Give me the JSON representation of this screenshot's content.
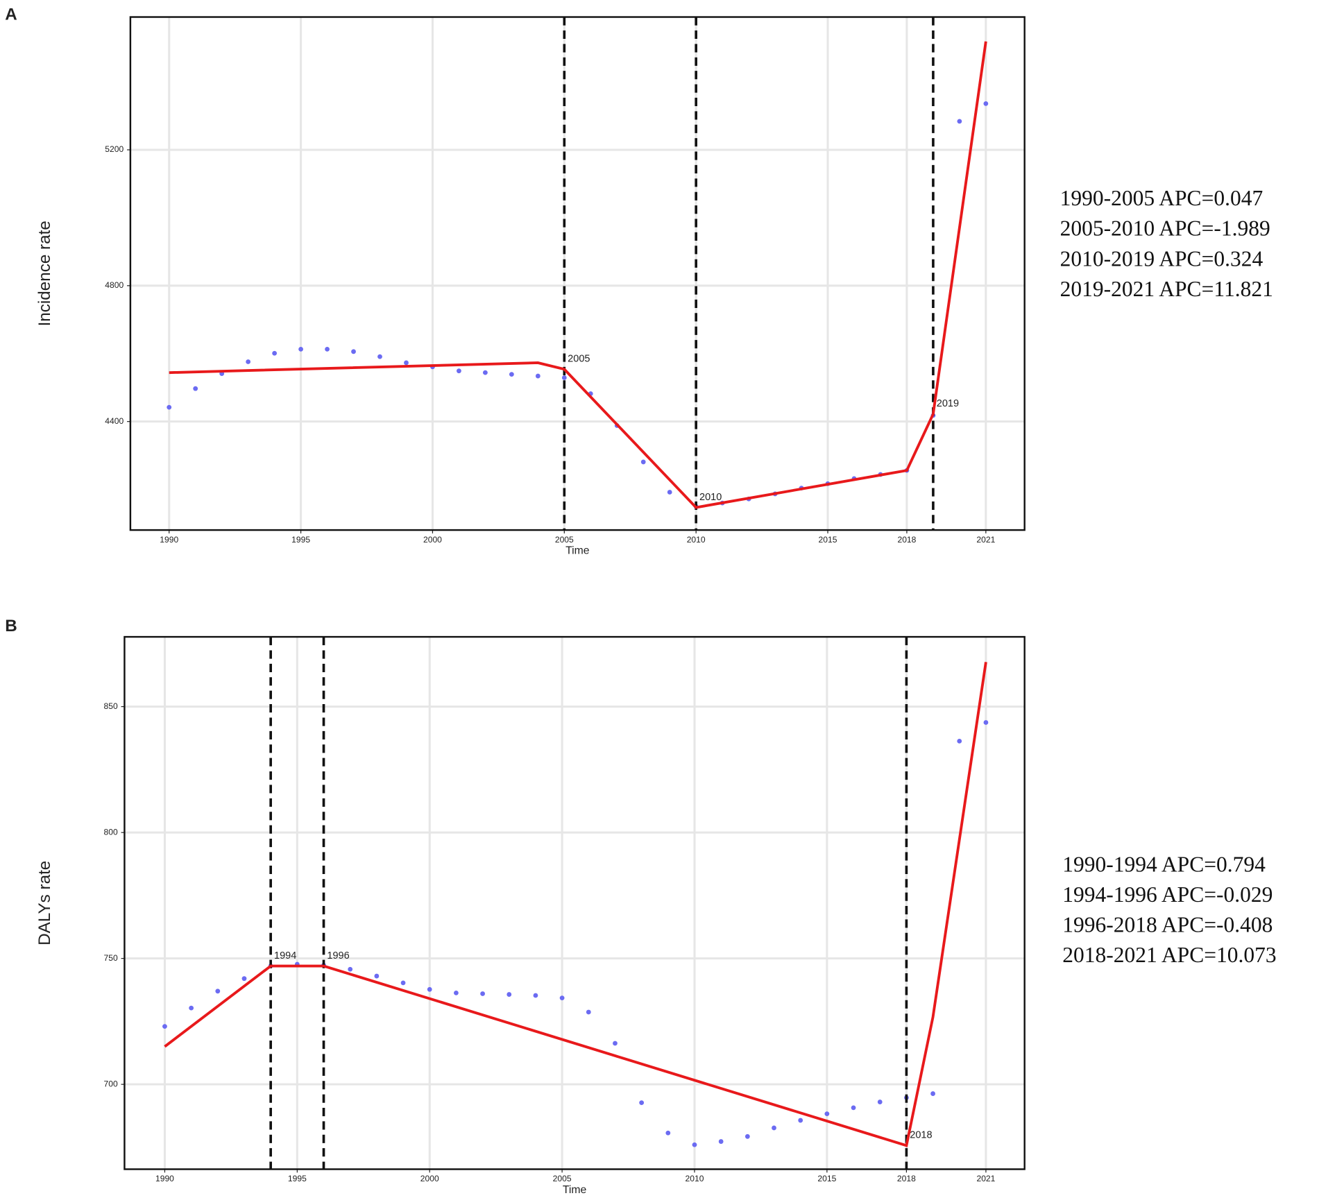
{
  "chart_data": [
    {
      "type": "line",
      "panel": "A",
      "xlabel": "Time",
      "ylabel": "Incidence rate",
      "xlim": [
        1988.53,
        2022.47
      ],
      "ylim": [
        4080.5,
        5591
      ],
      "xticks": [
        1990,
        1995,
        2000,
        2005,
        2010,
        2015,
        2018,
        2021
      ],
      "yticks": [
        4400,
        4800,
        5200
      ],
      "grid": true,
      "breakpoints": [
        2005,
        2010,
        2019
      ],
      "annotations": [
        "1990-2005 APC=0.047",
        "2005-2010 APC=-1.989",
        "2010-2019 APC=0.324",
        "2019-2021 APC=11.821"
      ],
      "series": [
        {
          "mode": "markers",
          "color": "#6b6bf2",
          "x": [
            1990,
            1991,
            1992,
            1993,
            1994,
            1995,
            1996,
            1997,
            1998,
            1999,
            2000,
            2001,
            2002,
            2003,
            2004,
            2005,
            2006,
            2007,
            2008,
            2009,
            2010,
            2011,
            2012,
            2013,
            2014,
            2015,
            2016,
            2017,
            2018,
            2019,
            2020,
            2021
          ],
          "values": [
            4442,
            4497,
            4541,
            4576,
            4601,
            4613,
            4613,
            4606,
            4591,
            4573,
            4561,
            4549,
            4544,
            4539,
            4534,
            4529,
            4482,
            4388,
            4281,
            4192,
            4150,
            4160,
            4172,
            4187,
            4204,
            4217,
            4232,
            4244,
            4256,
            4418,
            5284,
            5336
          ]
        },
        {
          "mode": "line",
          "color": "#e8191b",
          "x": [
            1990,
            2004,
            2005,
            2010,
            2018,
            2019,
            2021
          ],
          "values": [
            4544,
            4573,
            4554,
            4147,
            4256,
            4422,
            5519
          ]
        }
      ]
    },
    {
      "type": "line",
      "panel": "B",
      "xlabel": "Time",
      "ylabel": "DALYs rate",
      "xlim": [
        1988.48,
        2022.46
      ],
      "ylim": [
        666.3,
        877.7
      ],
      "xticks": [
        1990,
        1995,
        2000,
        2005,
        2010,
        2015,
        2018,
        2021
      ],
      "yticks": [
        700,
        750,
        800,
        850
      ],
      "grid": true,
      "breakpoints": [
        1994,
        1996,
        2018
      ],
      "annotations": [
        "1990-1994 APC=0.794",
        "1994-1996 APC=-0.029",
        "1996-2018 APC=-0.408",
        "2018-2021 APC=10.073"
      ],
      "series": [
        {
          "mode": "markers",
          "color": "#6b6bf2",
          "x": [
            1990,
            1991,
            1992,
            1993,
            1994,
            1995,
            1996,
            1997,
            1998,
            1999,
            2000,
            2001,
            2002,
            2003,
            2004,
            2005,
            2006,
            2007,
            2008,
            2009,
            2010,
            2011,
            2012,
            2013,
            2014,
            2015,
            2016,
            2017,
            2018,
            2019,
            2020,
            2021
          ],
          "values": [
            723,
            730.3,
            737,
            742,
            747,
            747.7,
            747.3,
            745.7,
            743,
            740.3,
            737.7,
            736.3,
            736,
            735.7,
            735.3,
            734.3,
            728.7,
            716.3,
            692.7,
            680.7,
            676,
            677.3,
            679.3,
            682.7,
            685.7,
            688.3,
            690.7,
            693,
            694.7,
            696.3,
            836.3,
            843.7
          ]
        },
        {
          "mode": "line",
          "color": "#e8191b",
          "x": [
            1990,
            1994,
            1996,
            2018,
            2019,
            2021
          ],
          "values": [
            715,
            747,
            747,
            675.7,
            726.7,
            867.7
          ]
        }
      ]
    }
  ]
}
